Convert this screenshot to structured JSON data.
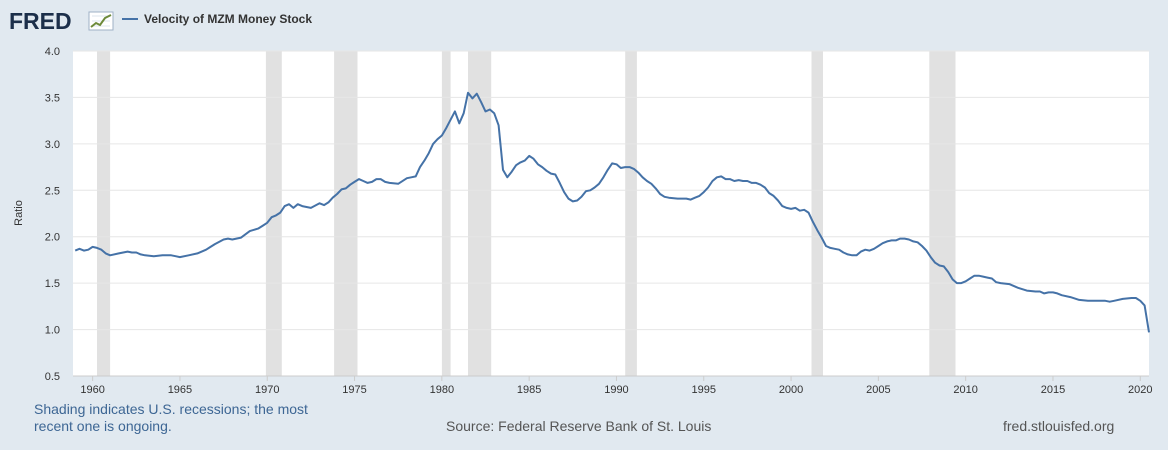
{
  "header": {
    "logo": "FRED",
    "legend_label": "Velocity of MZM Money Stock"
  },
  "footer": {
    "note": "Shading indicates U.S. recessions; the most recent one is ongoing.",
    "source": "Source: Federal Reserve Bank of St. Louis",
    "url": "fred.stlouisfed.org"
  },
  "colors": {
    "line": "#4572a7",
    "recession": "#e1e1e1",
    "grid": "#e6e6e6",
    "page": "#e1e9f0"
  },
  "chart_data": {
    "type": "line",
    "title": "",
    "xlabel": "",
    "ylabel": "Ratio",
    "xlim": [
      1958.875,
      2020.5
    ],
    "ylim": [
      0.5,
      4.0
    ],
    "yticks": [
      "0.5",
      "1.0",
      "1.5",
      "2.0",
      "2.5",
      "3.0",
      "3.5",
      "4.0"
    ],
    "xticks": [
      "1960",
      "1965",
      "1970",
      "1975",
      "1980",
      "1985",
      "1990",
      "1995",
      "2000",
      "2005",
      "2010",
      "2015",
      "2020"
    ],
    "grid": true,
    "legend_position": "top-left",
    "recessions": [
      [
        1960.25,
        1961.0
      ],
      [
        1969.92,
        1970.83
      ],
      [
        1973.83,
        1975.17
      ],
      [
        1980.0,
        1980.5
      ],
      [
        1981.5,
        1982.83
      ],
      [
        1990.5,
        1991.17
      ],
      [
        2001.17,
        2001.83
      ],
      [
        2007.92,
        2009.42
      ]
    ],
    "series": [
      {
        "name": "Velocity of MZM Money Stock",
        "points": [
          [
            1959.0,
            1.85
          ],
          [
            1959.25,
            1.87
          ],
          [
            1959.5,
            1.85
          ],
          [
            1959.75,
            1.86
          ],
          [
            1960.0,
            1.89
          ],
          [
            1960.25,
            1.88
          ],
          [
            1960.5,
            1.86
          ],
          [
            1960.75,
            1.82
          ],
          [
            1961.0,
            1.8
          ],
          [
            1961.5,
            1.82
          ],
          [
            1962.0,
            1.84
          ],
          [
            1962.25,
            1.83
          ],
          [
            1962.5,
            1.83
          ],
          [
            1962.75,
            1.81
          ],
          [
            1963.0,
            1.8
          ],
          [
            1963.5,
            1.79
          ],
          [
            1964.0,
            1.8
          ],
          [
            1964.5,
            1.8
          ],
          [
            1964.75,
            1.79
          ],
          [
            1965.0,
            1.78
          ],
          [
            1965.5,
            1.8
          ],
          [
            1966.0,
            1.82
          ],
          [
            1966.5,
            1.86
          ],
          [
            1966.75,
            1.89
          ],
          [
            1967.0,
            1.92
          ],
          [
            1967.5,
            1.97
          ],
          [
            1967.75,
            1.98
          ],
          [
            1968.0,
            1.97
          ],
          [
            1968.5,
            1.99
          ],
          [
            1969.0,
            2.06
          ],
          [
            1969.5,
            2.09
          ],
          [
            1969.75,
            2.12
          ],
          [
            1970.0,
            2.15
          ],
          [
            1970.25,
            2.21
          ],
          [
            1970.5,
            2.23
          ],
          [
            1970.75,
            2.26
          ],
          [
            1971.0,
            2.33
          ],
          [
            1971.25,
            2.35
          ],
          [
            1971.5,
            2.31
          ],
          [
            1971.75,
            2.35
          ],
          [
            1972.0,
            2.33
          ],
          [
            1972.5,
            2.31
          ],
          [
            1973.0,
            2.36
          ],
          [
            1973.25,
            2.34
          ],
          [
            1973.5,
            2.37
          ],
          [
            1973.75,
            2.42
          ],
          [
            1974.0,
            2.46
          ],
          [
            1974.25,
            2.51
          ],
          [
            1974.5,
            2.52
          ],
          [
            1974.75,
            2.56
          ],
          [
            1975.0,
            2.59
          ],
          [
            1975.25,
            2.62
          ],
          [
            1975.5,
            2.6
          ],
          [
            1975.75,
            2.58
          ],
          [
            1976.0,
            2.59
          ],
          [
            1976.25,
            2.62
          ],
          [
            1976.5,
            2.62
          ],
          [
            1976.75,
            2.59
          ],
          [
            1977.0,
            2.58
          ],
          [
            1977.5,
            2.57
          ],
          [
            1978.0,
            2.63
          ],
          [
            1978.25,
            2.64
          ],
          [
            1978.5,
            2.65
          ],
          [
            1978.75,
            2.75
          ],
          [
            1979.0,
            2.82
          ],
          [
            1979.25,
            2.9
          ],
          [
            1979.5,
            3.0
          ],
          [
            1979.75,
            3.05
          ],
          [
            1980.0,
            3.09
          ],
          [
            1980.25,
            3.17
          ],
          [
            1980.5,
            3.26
          ],
          [
            1980.75,
            3.35
          ],
          [
            1981.0,
            3.22
          ],
          [
            1981.25,
            3.33
          ],
          [
            1981.5,
            3.55
          ],
          [
            1981.75,
            3.49
          ],
          [
            1982.0,
            3.54
          ],
          [
            1982.25,
            3.45
          ],
          [
            1982.5,
            3.35
          ],
          [
            1982.75,
            3.37
          ],
          [
            1983.0,
            3.33
          ],
          [
            1983.25,
            3.2
          ],
          [
            1983.5,
            2.72
          ],
          [
            1983.75,
            2.64
          ],
          [
            1984.0,
            2.7
          ],
          [
            1984.25,
            2.77
          ],
          [
            1984.5,
            2.8
          ],
          [
            1984.75,
            2.82
          ],
          [
            1985.0,
            2.87
          ],
          [
            1985.25,
            2.84
          ],
          [
            1985.5,
            2.78
          ],
          [
            1985.75,
            2.75
          ],
          [
            1986.0,
            2.71
          ],
          [
            1986.25,
            2.68
          ],
          [
            1986.5,
            2.67
          ],
          [
            1986.75,
            2.58
          ],
          [
            1987.0,
            2.48
          ],
          [
            1987.25,
            2.41
          ],
          [
            1987.5,
            2.38
          ],
          [
            1987.75,
            2.39
          ],
          [
            1988.0,
            2.43
          ],
          [
            1988.25,
            2.49
          ],
          [
            1988.5,
            2.5
          ],
          [
            1988.75,
            2.53
          ],
          [
            1989.0,
            2.57
          ],
          [
            1989.25,
            2.64
          ],
          [
            1989.5,
            2.72
          ],
          [
            1989.75,
            2.79
          ],
          [
            1990.0,
            2.78
          ],
          [
            1990.25,
            2.74
          ],
          [
            1990.5,
            2.75
          ],
          [
            1990.75,
            2.75
          ],
          [
            1991.0,
            2.73
          ],
          [
            1991.25,
            2.69
          ],
          [
            1991.5,
            2.64
          ],
          [
            1991.75,
            2.6
          ],
          [
            1992.0,
            2.57
          ],
          [
            1992.25,
            2.52
          ],
          [
            1992.5,
            2.46
          ],
          [
            1992.75,
            2.43
          ],
          [
            1993.0,
            2.42
          ],
          [
            1993.5,
            2.41
          ],
          [
            1994.0,
            2.41
          ],
          [
            1994.25,
            2.4
          ],
          [
            1994.5,
            2.42
          ],
          [
            1994.75,
            2.44
          ],
          [
            1995.0,
            2.48
          ],
          [
            1995.25,
            2.53
          ],
          [
            1995.5,
            2.6
          ],
          [
            1995.75,
            2.64
          ],
          [
            1996.0,
            2.65
          ],
          [
            1996.25,
            2.62
          ],
          [
            1996.5,
            2.62
          ],
          [
            1996.75,
            2.6
          ],
          [
            1997.0,
            2.61
          ],
          [
            1997.25,
            2.6
          ],
          [
            1997.5,
            2.6
          ],
          [
            1997.75,
            2.58
          ],
          [
            1998.0,
            2.58
          ],
          [
            1998.25,
            2.56
          ],
          [
            1998.5,
            2.53
          ],
          [
            1998.75,
            2.47
          ],
          [
            1999.0,
            2.44
          ],
          [
            1999.25,
            2.39
          ],
          [
            1999.5,
            2.33
          ],
          [
            1999.75,
            2.31
          ],
          [
            2000.0,
            2.3
          ],
          [
            2000.25,
            2.31
          ],
          [
            2000.5,
            2.28
          ],
          [
            2000.75,
            2.29
          ],
          [
            2001.0,
            2.26
          ],
          [
            2001.25,
            2.16
          ],
          [
            2001.5,
            2.07
          ],
          [
            2001.75,
            1.99
          ],
          [
            2002.0,
            1.9
          ],
          [
            2002.25,
            1.88
          ],
          [
            2002.5,
            1.87
          ],
          [
            2002.75,
            1.86
          ],
          [
            2003.0,
            1.83
          ],
          [
            2003.25,
            1.81
          ],
          [
            2003.5,
            1.8
          ],
          [
            2003.75,
            1.8
          ],
          [
            2004.0,
            1.84
          ],
          [
            2004.25,
            1.86
          ],
          [
            2004.5,
            1.85
          ],
          [
            2004.75,
            1.87
          ],
          [
            2005.0,
            1.9
          ],
          [
            2005.25,
            1.93
          ],
          [
            2005.5,
            1.95
          ],
          [
            2005.75,
            1.96
          ],
          [
            2006.0,
            1.96
          ],
          [
            2006.25,
            1.98
          ],
          [
            2006.5,
            1.98
          ],
          [
            2006.75,
            1.97
          ],
          [
            2007.0,
            1.95
          ],
          [
            2007.25,
            1.94
          ],
          [
            2007.5,
            1.9
          ],
          [
            2007.75,
            1.85
          ],
          [
            2008.0,
            1.78
          ],
          [
            2008.25,
            1.72
          ],
          [
            2008.5,
            1.69
          ],
          [
            2008.75,
            1.68
          ],
          [
            2009.0,
            1.62
          ],
          [
            2009.25,
            1.54
          ],
          [
            2009.5,
            1.5
          ],
          [
            2009.75,
            1.5
          ],
          [
            2010.0,
            1.52
          ],
          [
            2010.25,
            1.55
          ],
          [
            2010.5,
            1.58
          ],
          [
            2010.75,
            1.58
          ],
          [
            2011.0,
            1.57
          ],
          [
            2011.25,
            1.56
          ],
          [
            2011.5,
            1.55
          ],
          [
            2011.75,
            1.51
          ],
          [
            2012.0,
            1.5
          ],
          [
            2012.5,
            1.49
          ],
          [
            2013.0,
            1.45
          ],
          [
            2013.5,
            1.42
          ],
          [
            2014.0,
            1.41
          ],
          [
            2014.25,
            1.41
          ],
          [
            2014.5,
            1.39
          ],
          [
            2014.75,
            1.4
          ],
          [
            2015.0,
            1.4
          ],
          [
            2015.25,
            1.39
          ],
          [
            2015.5,
            1.37
          ],
          [
            2016.0,
            1.35
          ],
          [
            2016.5,
            1.32
          ],
          [
            2017.0,
            1.31
          ],
          [
            2017.5,
            1.31
          ],
          [
            2018.0,
            1.31
          ],
          [
            2018.25,
            1.3
          ],
          [
            2018.5,
            1.31
          ],
          [
            2019.0,
            1.33
          ],
          [
            2019.5,
            1.34
          ],
          [
            2019.75,
            1.34
          ],
          [
            2020.0,
            1.31
          ],
          [
            2020.25,
            1.26
          ],
          [
            2020.5,
            0.97
          ]
        ]
      }
    ]
  }
}
